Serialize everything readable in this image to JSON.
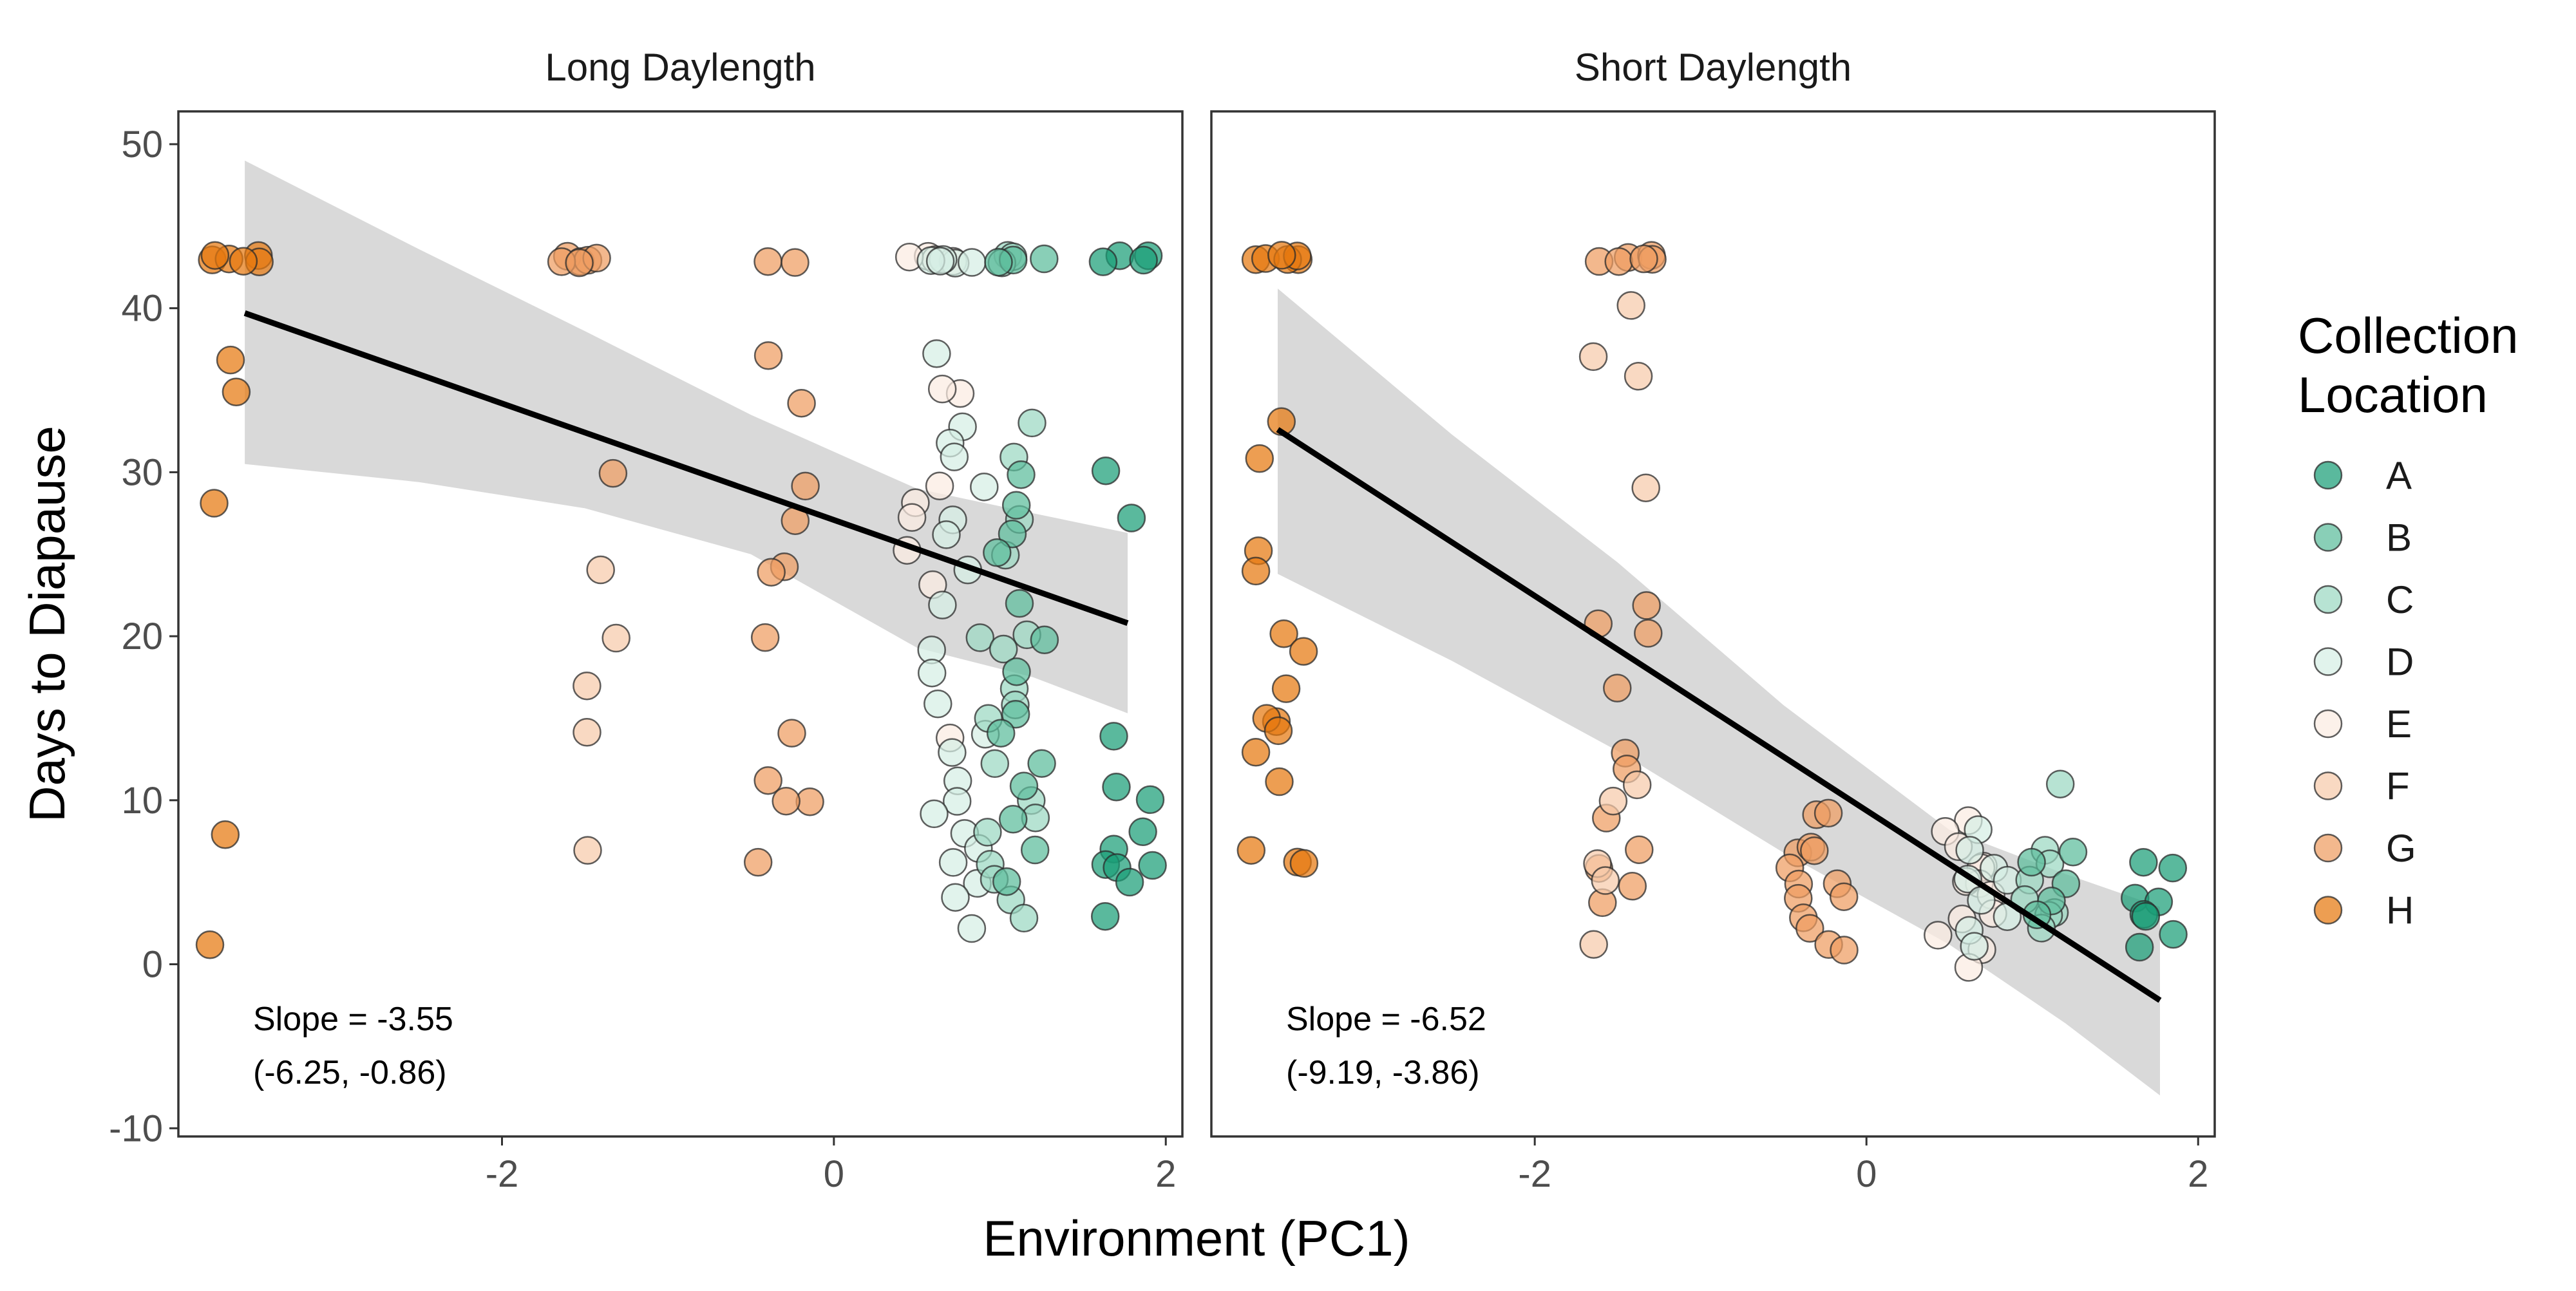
{
  "chart_data": {
    "type": "scatter",
    "y_axis_title": "Days to Diapause",
    "x_axis_title": "Environment (PC1)",
    "xlim": [
      -3.95,
      2.1
    ],
    "ylim": [
      -10.5,
      52
    ],
    "x_ticks": [
      -2,
      0,
      2
    ],
    "x_tick_labels": [
      "-2",
      "0",
      "2"
    ],
    "y_ticks": [
      -10,
      0,
      10,
      20,
      30,
      40,
      50
    ],
    "y_tick_labels": [
      "-10",
      "0",
      "10",
      "20",
      "30",
      "40",
      "50"
    ],
    "grid": false,
    "legend": {
      "title_lines": [
        "Collection",
        "Location"
      ],
      "position": "right",
      "items": [
        {
          "label": "A",
          "color": "#1b9e77"
        },
        {
          "label": "B",
          "color": "#5cbc9b"
        },
        {
          "label": "C",
          "color": "#9bd8c2"
        },
        {
          "label": "D",
          "color": "#d5efe5"
        },
        {
          "label": "E",
          "color": "#fbece2"
        },
        {
          "label": "F",
          "color": "#f7cbaa"
        },
        {
          "label": "G",
          "color": "#ef9d61"
        },
        {
          "label": "H",
          "color": "#e6780f"
        }
      ]
    },
    "panels": [
      {
        "title": "Long Daylength",
        "slope_text": "Slope = -3.55",
        "ci_text": "(-6.25, -0.86)",
        "fit": {
          "x": [
            -3.55,
            1.77
          ],
          "y": [
            39.7,
            20.8
          ]
        },
        "ribbon": {
          "x": [
            -3.55,
            -2.5,
            -1.5,
            -0.5,
            0.5,
            1.2,
            1.77
          ],
          "upper": [
            49.0,
            43.6,
            38.6,
            33.5,
            29.0,
            27.5,
            26.3
          ],
          "lower": [
            30.5,
            29.4,
            27.8,
            25.0,
            19.3,
            17.5,
            15.3
          ]
        },
        "groups": [
          {
            "label": "H",
            "x": -3.6,
            "y": [
              43,
              43,
              43,
              43,
              43,
              43,
              37,
              35,
              28,
              8,
              1
            ]
          },
          {
            "label": "G",
            "x": -1.5,
            "y": [
              43,
              43,
              43,
              43,
              43,
              43,
              30
            ]
          },
          {
            "label": "F",
            "x": -1.45,
            "y": [
              24,
              20,
              17,
              14,
              7
            ]
          },
          {
            "label": "G",
            "x": -0.3,
            "y": [
              43,
              43,
              37,
              34,
              29,
              27,
              24,
              24,
              20,
              14,
              11,
              10,
              10,
              6
            ]
          },
          {
            "label": "E",
            "x": 0.6,
            "y": [
              43,
              43,
              43,
              43,
              35,
              35,
              29,
              28,
              27,
              25,
              23,
              14
            ]
          },
          {
            "label": "D",
            "x": 0.75,
            "y": [
              43,
              43,
              43,
              43,
              43,
              37,
              33,
              32,
              31,
              29,
              27,
              26,
              24,
              22,
              19,
              18,
              16,
              14,
              13,
              11,
              10,
              9,
              8,
              7,
              6,
              5,
              4,
              2
            ]
          },
          {
            "label": "C",
            "x": 1.05,
            "y": [
              43,
              43,
              43,
              33,
              31,
              27,
              25,
              20,
              20,
              19,
              17,
              16,
              15,
              12,
              10,
              9,
              8,
              6,
              5,
              4,
              3
            ]
          },
          {
            "label": "B",
            "x": 1.15,
            "y": [
              43,
              43,
              43,
              30,
              28,
              26,
              25,
              22,
              20,
              18,
              15,
              14,
              12,
              11,
              9,
              7,
              5
            ]
          },
          {
            "label": "A",
            "x": 1.78,
            "y": [
              43,
              43,
              43,
              43,
              30,
              27,
              14,
              11,
              10,
              8,
              7,
              6,
              6,
              6,
              5,
              3
            ]
          }
        ]
      },
      {
        "title": "Short Daylength",
        "slope_text": "Slope = -6.52",
        "ci_text": "(-9.19, -3.86)",
        "fit": {
          "x": [
            -3.55,
            1.77
          ],
          "y": [
            32.6,
            -2.2
          ]
        },
        "ribbon": {
          "x": [
            -3.55,
            -2.5,
            -1.5,
            -0.5,
            0.5,
            1.2,
            1.77
          ],
          "upper": [
            41.2,
            32.3,
            24.5,
            15.8,
            8.2,
            5.5,
            3.5
          ],
          "lower": [
            23.8,
            18.5,
            13.0,
            6.8,
            1.2,
            -3.6,
            -8.0
          ]
        },
        "groups": [
          {
            "label": "H",
            "x": -3.55,
            "y": [
              43,
              43,
              43,
              43,
              43,
              43,
              33,
              31,
              25,
              24,
              20,
              19,
              17,
              15,
              15,
              14,
              13,
              11,
              7,
              6,
              6
            ]
          },
          {
            "label": "G",
            "x": -1.45,
            "y": [
              43,
              43,
              43,
              43,
              43,
              43,
              22,
              21,
              20,
              17,
              13,
              12,
              9,
              7,
              6,
              5,
              4
            ]
          },
          {
            "label": "F",
            "x": -1.5,
            "y": [
              40,
              37,
              36,
              29,
              11,
              10,
              6,
              5,
              1
            ]
          },
          {
            "label": "G",
            "x": -0.3,
            "y": [
              9,
              9,
              7,
              7,
              7,
              6,
              5,
              5,
              4,
              4,
              3,
              2,
              1,
              1
            ]
          },
          {
            "label": "E",
            "x": 0.6,
            "y": [
              9,
              8,
              7,
              6,
              6,
              5,
              5,
              4,
              3,
              3,
              2,
              1,
              0
            ]
          },
          {
            "label": "D",
            "x": 0.75,
            "y": [
              8,
              7,
              6,
              5,
              5,
              4,
              3,
              2,
              1
            ]
          },
          {
            "label": "C",
            "x": 1.1,
            "y": [
              11,
              7,
              6,
              5,
              4,
              3,
              3,
              2
            ]
          },
          {
            "label": "B",
            "x": 1.15,
            "y": [
              7,
              6,
              5,
              4,
              3
            ]
          },
          {
            "label": "A",
            "x": 1.75,
            "y": [
              6,
              6,
              4,
              4,
              3,
              3,
              2,
              1
            ]
          }
        ]
      }
    ]
  }
}
